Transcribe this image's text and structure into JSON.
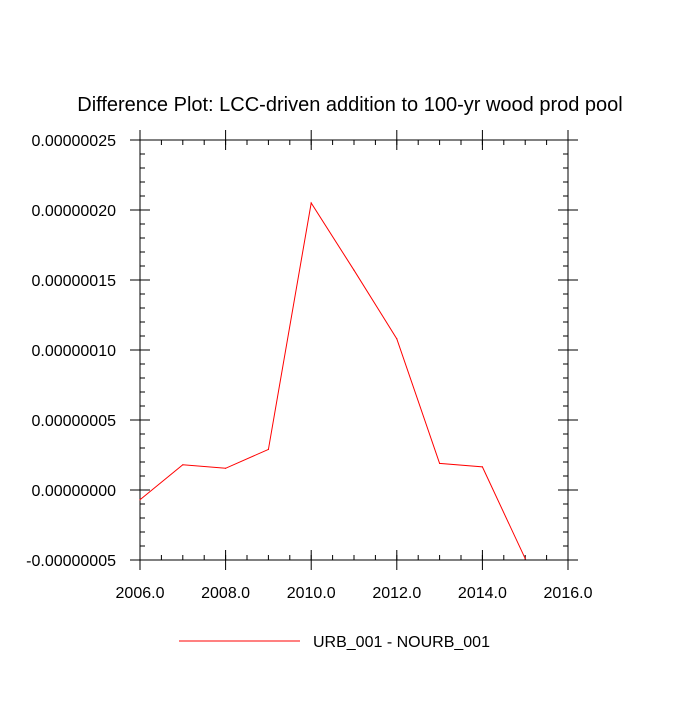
{
  "chart_data": {
    "type": "line",
    "title": "Difference Plot: LCC-driven addition to 100-yr wood prod pool",
    "xlabel": "",
    "ylabel": "",
    "xlim": [
      2006.0,
      2016.0
    ],
    "ylim": [
      -5e-08,
      2.5e-07
    ],
    "x_ticks": [
      "2006.0",
      "2008.0",
      "2010.0",
      "2012.0",
      "2014.0",
      "2016.0"
    ],
    "y_ticks": [
      "0.00000025",
      "0.00000020",
      "0.00000015",
      "0.00000010",
      "0.00000005",
      "0.00000000",
      "-0.00000005"
    ],
    "grid": false,
    "legend_position": "bottom",
    "series": [
      {
        "name": "URB_001 - NOURB_001",
        "color": "#ff0000",
        "x": [
          2006,
          2007,
          2008,
          2009,
          2010,
          2011,
          2012,
          2013,
          2014,
          2015
        ],
        "y": [
          -7e-09,
          1.8e-08,
          1.55e-08,
          2.9e-08,
          2.05e-07,
          1.57e-07,
          1.08e-07,
          1.9e-08,
          1.65e-08,
          -4.9e-08
        ]
      }
    ]
  }
}
